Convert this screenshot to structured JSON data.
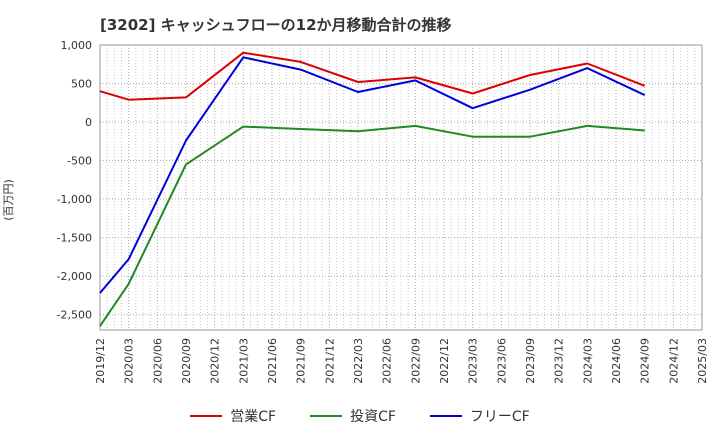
{
  "chart_data": {
    "type": "line",
    "title": "[3202]  キャッシュフローの12か月移動合計の推移",
    "ylabel": "(百万円)",
    "xlabel": "",
    "ylim": [
      -2700,
      1000
    ],
    "yticks": [
      1000,
      500,
      0,
      -500,
      -1000,
      -1500,
      -2000,
      -2500
    ],
    "ytick_labels": [
      "1,000",
      "500",
      "0",
      "-500",
      "-1,000",
      "-1,500",
      "-2,000",
      "-2,500"
    ],
    "categories": [
      "2019/12",
      "2020/03",
      "2020/06",
      "2020/09",
      "2020/12",
      "2021/03",
      "2021/06",
      "2021/09",
      "2021/12",
      "2022/03",
      "2022/06",
      "2022/09",
      "2022/12",
      "2023/03",
      "2023/06",
      "2023/09",
      "2023/12",
      "2024/03",
      "2024/06",
      "2024/09",
      "2024/12",
      "2025/03"
    ],
    "series": [
      {
        "name": "営業CF",
        "color": "#dd0000",
        "values": [
          400,
          290,
          null,
          320,
          null,
          900,
          null,
          780,
          null,
          520,
          null,
          580,
          null,
          370,
          null,
          610,
          null,
          760,
          null,
          470,
          null,
          null
        ]
      },
      {
        "name": "投資CF",
        "color": "#228822",
        "values": [
          -2650,
          -2100,
          null,
          -550,
          null,
          -60,
          null,
          -90,
          null,
          -120,
          null,
          -50,
          null,
          -190,
          null,
          -190,
          null,
          -50,
          null,
          -110,
          null,
          null
        ]
      },
      {
        "name": "フリーCF",
        "color": "#0000dd",
        "values": [
          -2220,
          -1780,
          null,
          -240,
          null,
          840,
          null,
          680,
          null,
          390,
          null,
          540,
          null,
          180,
          null,
          420,
          null,
          700,
          null,
          350,
          null,
          null
        ]
      }
    ]
  }
}
